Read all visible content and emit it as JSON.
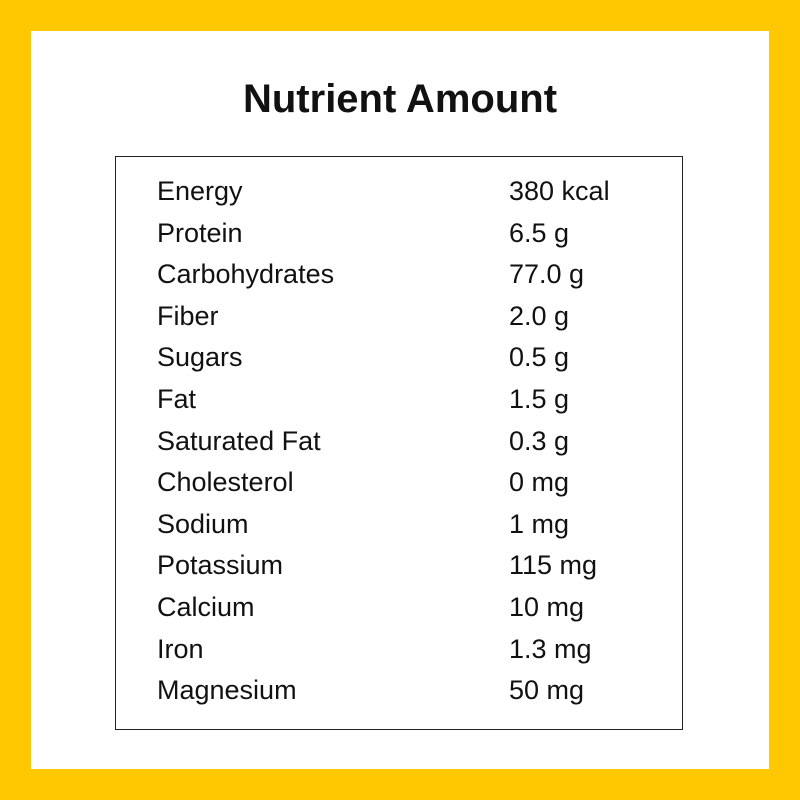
{
  "title": "Nutrient Amount",
  "colors": {
    "border": "#FFC800",
    "background": "#FFFFFF",
    "text": "#111111"
  },
  "rows": [
    {
      "name": "Energy",
      "amount": "380 kcal"
    },
    {
      "name": "Protein",
      "amount": "6.5 g"
    },
    {
      "name": "Carbohydrates",
      "amount": "77.0 g"
    },
    {
      "name": "Fiber",
      "amount": "2.0 g"
    },
    {
      "name": "Sugars",
      "amount": "0.5 g"
    },
    {
      "name": "Fat",
      "amount": "1.5 g"
    },
    {
      "name": "Saturated Fat",
      "amount": "0.3 g"
    },
    {
      "name": "Cholesterol",
      "amount": "0 mg"
    },
    {
      "name": "Sodium",
      "amount": "1 mg"
    },
    {
      "name": "Potassium",
      "amount": "115 mg"
    },
    {
      "name": "Calcium",
      "amount": "10 mg"
    },
    {
      "name": "Iron",
      "amount": "1.3 mg"
    },
    {
      "name": "Magnesium",
      "amount": "50 mg"
    }
  ]
}
